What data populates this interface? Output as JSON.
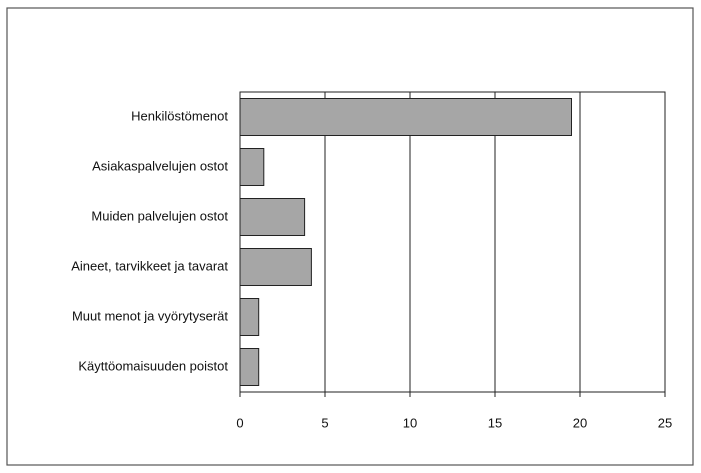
{
  "chart_data": {
    "type": "bar",
    "orientation": "horizontal",
    "categories": [
      "Henkilöstömenot",
      "Asiakaspalvelujen ostot",
      "Muiden palvelujen ostot",
      "Aineet, tarvikkeet ja tavarat",
      "Muut menot ja vyörytyserät",
      "Käyttöomaisuuden poistot"
    ],
    "values": [
      19.5,
      1.4,
      3.8,
      4.2,
      1.1,
      1.1
    ],
    "color": "#a6a6a6",
    "xlim": [
      0,
      25
    ],
    "xticks": [
      0,
      5,
      10,
      15,
      20,
      25
    ],
    "grid": true
  }
}
